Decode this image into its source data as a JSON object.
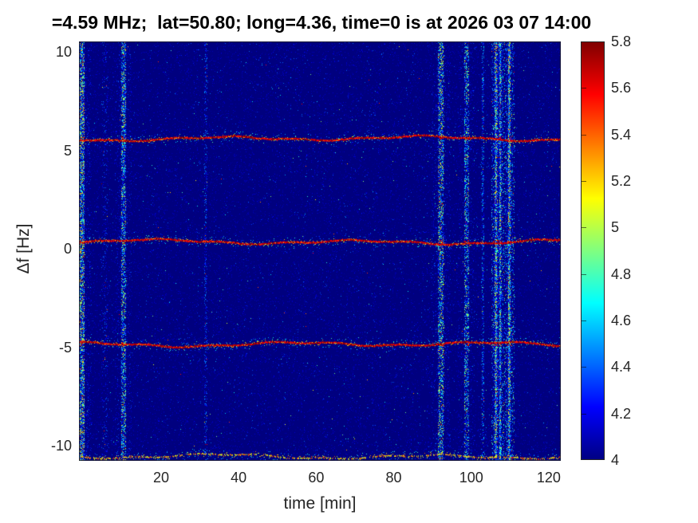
{
  "chart_data": {
    "type": "heatmap",
    "title": "=4.59 MHz;  lat=50.80; long=4.36, time=0 is at 2026 03 07 14:00",
    "xlabel": "time [min]",
    "ylabel": "Δf [Hz]",
    "xlim": [
      -1.2,
      123.1
    ],
    "ylim": [
      -10.77,
      10.53
    ],
    "x_ticks": [
      20,
      40,
      60,
      80,
      100,
      120
    ],
    "y_ticks": [
      10,
      5,
      0,
      -5,
      -10
    ],
    "grid": false,
    "legend": null,
    "colorbar": {
      "position": "right",
      "colormap": "jet",
      "clim": [
        4,
        5.8
      ],
      "ticks": [
        4,
        4.2,
        4.4,
        4.6,
        4.8,
        5,
        5.2,
        5.4,
        5.6,
        5.8
      ]
    },
    "noise_floor_value": 4.0,
    "features": {
      "horizontal_traces": [
        {
          "delta_f_hz": 5.6,
          "peak_value": 5.8,
          "strength": 1
        },
        {
          "delta_f_hz": 0.35,
          "peak_value": 5.8,
          "strength": 1
        },
        {
          "delta_f_hz": -4.85,
          "peak_value": 5.8,
          "strength": 1
        },
        {
          "delta_f_hz": -10.55,
          "peak_value": 5.5,
          "strength": 0.55
        }
      ],
      "vertical_stripes": [
        {
          "time_min": -0.5,
          "half_width_min": 0.7,
          "density": 7,
          "strength": 1.15
        },
        {
          "time_min": 5.5,
          "half_width_min": 0.8,
          "density": 0.7,
          "strength": 0.3
        },
        {
          "time_min": 10.3,
          "half_width_min": 0.6,
          "density": 4.5,
          "strength": 0.95
        },
        {
          "time_min": 31.5,
          "half_width_min": 0.35,
          "density": 0.9,
          "strength": 0.4
        },
        {
          "time_min": 92.2,
          "half_width_min": 0.7,
          "density": 5,
          "strength": 1.05
        },
        {
          "time_min": 98.8,
          "half_width_min": 0.6,
          "density": 3.5,
          "strength": 0.9
        },
        {
          "time_min": 103.0,
          "half_width_min": 0.3,
          "density": 1.2,
          "strength": 0.5
        },
        {
          "time_min": 108.2,
          "half_width_min": 3.0,
          "density": 6,
          "strength": 0.75
        },
        {
          "time_min": 106.4,
          "half_width_min": 0.27,
          "density": 5,
          "strength": 1.15
        },
        {
          "time_min": 107.5,
          "half_width_min": 0.2,
          "density": 3.5,
          "strength": 0.95
        },
        {
          "time_min": 109.8,
          "half_width_min": 0.27,
          "density": 5,
          "strength": 1.15
        }
      ]
    }
  }
}
